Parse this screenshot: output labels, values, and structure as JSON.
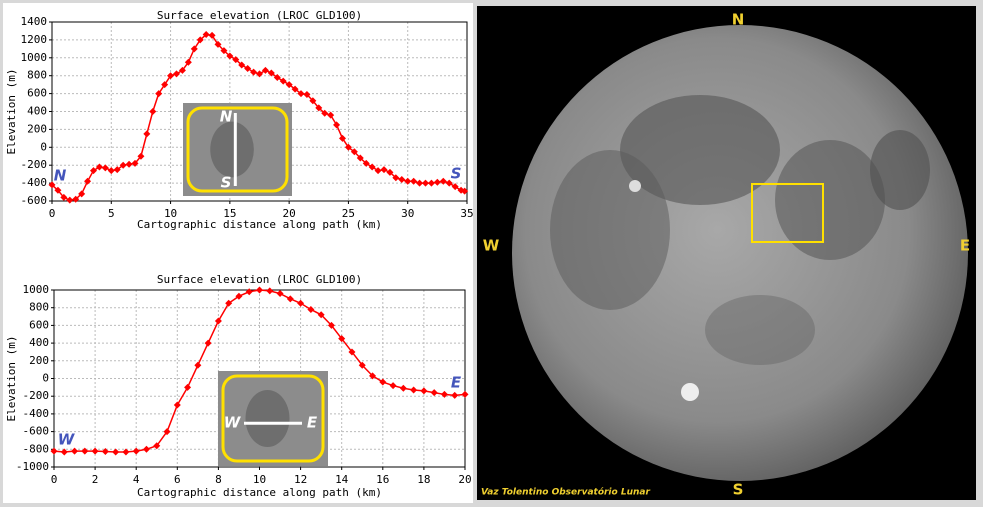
{
  "chart_data": [
    {
      "type": "line",
      "title": "Surface elevation (LROC GLD100)",
      "xlabel": "Cartographic distance along path (km)",
      "ylabel": "Elevation (m)",
      "color": "#ff0000",
      "grid": true,
      "x": [
        0,
        0.5,
        1,
        1.5,
        2,
        2.5,
        3,
        3.5,
        4,
        4.5,
        5,
        5.5,
        6,
        6.5,
        7,
        7.5,
        8,
        8.5,
        9,
        9.5,
        10,
        10.5,
        11,
        11.5,
        12,
        12.5,
        13,
        13.5,
        14,
        14.5,
        15,
        15.5,
        16,
        16.5,
        17,
        17.5,
        18,
        18.5,
        19,
        19.5,
        20,
        20.5,
        21,
        21.5,
        22,
        22.5,
        23,
        23.5,
        24,
        24.5,
        25,
        25.5,
        26,
        26.5,
        27,
        27.5,
        28,
        28.5,
        29,
        29.5,
        30,
        30.5,
        31,
        31.5,
        32,
        32.5,
        33,
        33.5,
        34,
        34.5,
        34.8
      ],
      "values": [
        -420,
        -480,
        -560,
        -590,
        -580,
        -520,
        -380,
        -260,
        -220,
        -230,
        -260,
        -250,
        -200,
        -190,
        -180,
        -100,
        150,
        400,
        600,
        700,
        800,
        820,
        860,
        950,
        1100,
        1200,
        1260,
        1250,
        1150,
        1080,
        1020,
        980,
        920,
        880,
        840,
        820,
        860,
        830,
        780,
        740,
        700,
        650,
        600,
        590,
        520,
        440,
        380,
        360,
        250,
        100,
        0,
        -50,
        -120,
        -180,
        -220,
        -260,
        -250,
        -280,
        -340,
        -360,
        -380,
        -380,
        -400,
        -400,
        -400,
        -390,
        -380,
        -400,
        -440,
        -480,
        -490
      ],
      "xlim": [
        0,
        35
      ],
      "xticks": [
        0,
        5,
        10,
        15,
        20,
        25,
        30,
        35
      ],
      "ylim": [
        -600,
        1400
      ],
      "yticks": [
        -600,
        -400,
        -200,
        0,
        200,
        400,
        600,
        800,
        1000,
        1200,
        1400
      ],
      "annotations": [
        "N",
        "S"
      ],
      "inset_labels": [
        "N",
        "S"
      ]
    },
    {
      "type": "line",
      "title": "Surface elevation (LROC GLD100)",
      "xlabel": "Cartographic distance along path (km)",
      "ylabel": "Elevation (m)",
      "color": "#ff0000",
      "grid": true,
      "x": [
        0,
        0.5,
        1,
        1.5,
        2,
        2.5,
        3,
        3.5,
        4,
        4.5,
        5,
        5.5,
        6,
        6.5,
        7,
        7.5,
        8,
        8.5,
        9,
        9.5,
        10,
        10.5,
        11,
        11.5,
        12,
        12.5,
        13,
        13.5,
        14,
        14.5,
        15,
        15.5,
        16,
        16.5,
        17,
        17.5,
        18,
        18.5,
        19,
        19.5,
        20
      ],
      "values": [
        -820,
        -830,
        -820,
        -820,
        -820,
        -825,
        -830,
        -830,
        -820,
        -800,
        -760,
        -600,
        -300,
        -100,
        150,
        400,
        650,
        850,
        930,
        980,
        1000,
        990,
        960,
        900,
        850,
        780,
        720,
        600,
        450,
        300,
        150,
        30,
        -40,
        -80,
        -110,
        -130,
        -140,
        -160,
        -180,
        -190,
        -180
      ],
      "xlim": [
        0,
        20
      ],
      "xticks": [
        0,
        2,
        4,
        6,
        8,
        10,
        12,
        14,
        16,
        18,
        20
      ],
      "ylim": [
        -1000,
        1000
      ],
      "yticks": [
        -1000,
        -800,
        -600,
        -400,
        -200,
        0,
        200,
        400,
        600,
        800,
        1000
      ],
      "annotations": [
        "W",
        "E"
      ],
      "inset_labels": [
        "W",
        "E"
      ]
    }
  ],
  "photo": {
    "north": "N",
    "south": "S",
    "west": "W",
    "east": "E",
    "credit": "Vaz Tolentino Observatório Lunar"
  }
}
